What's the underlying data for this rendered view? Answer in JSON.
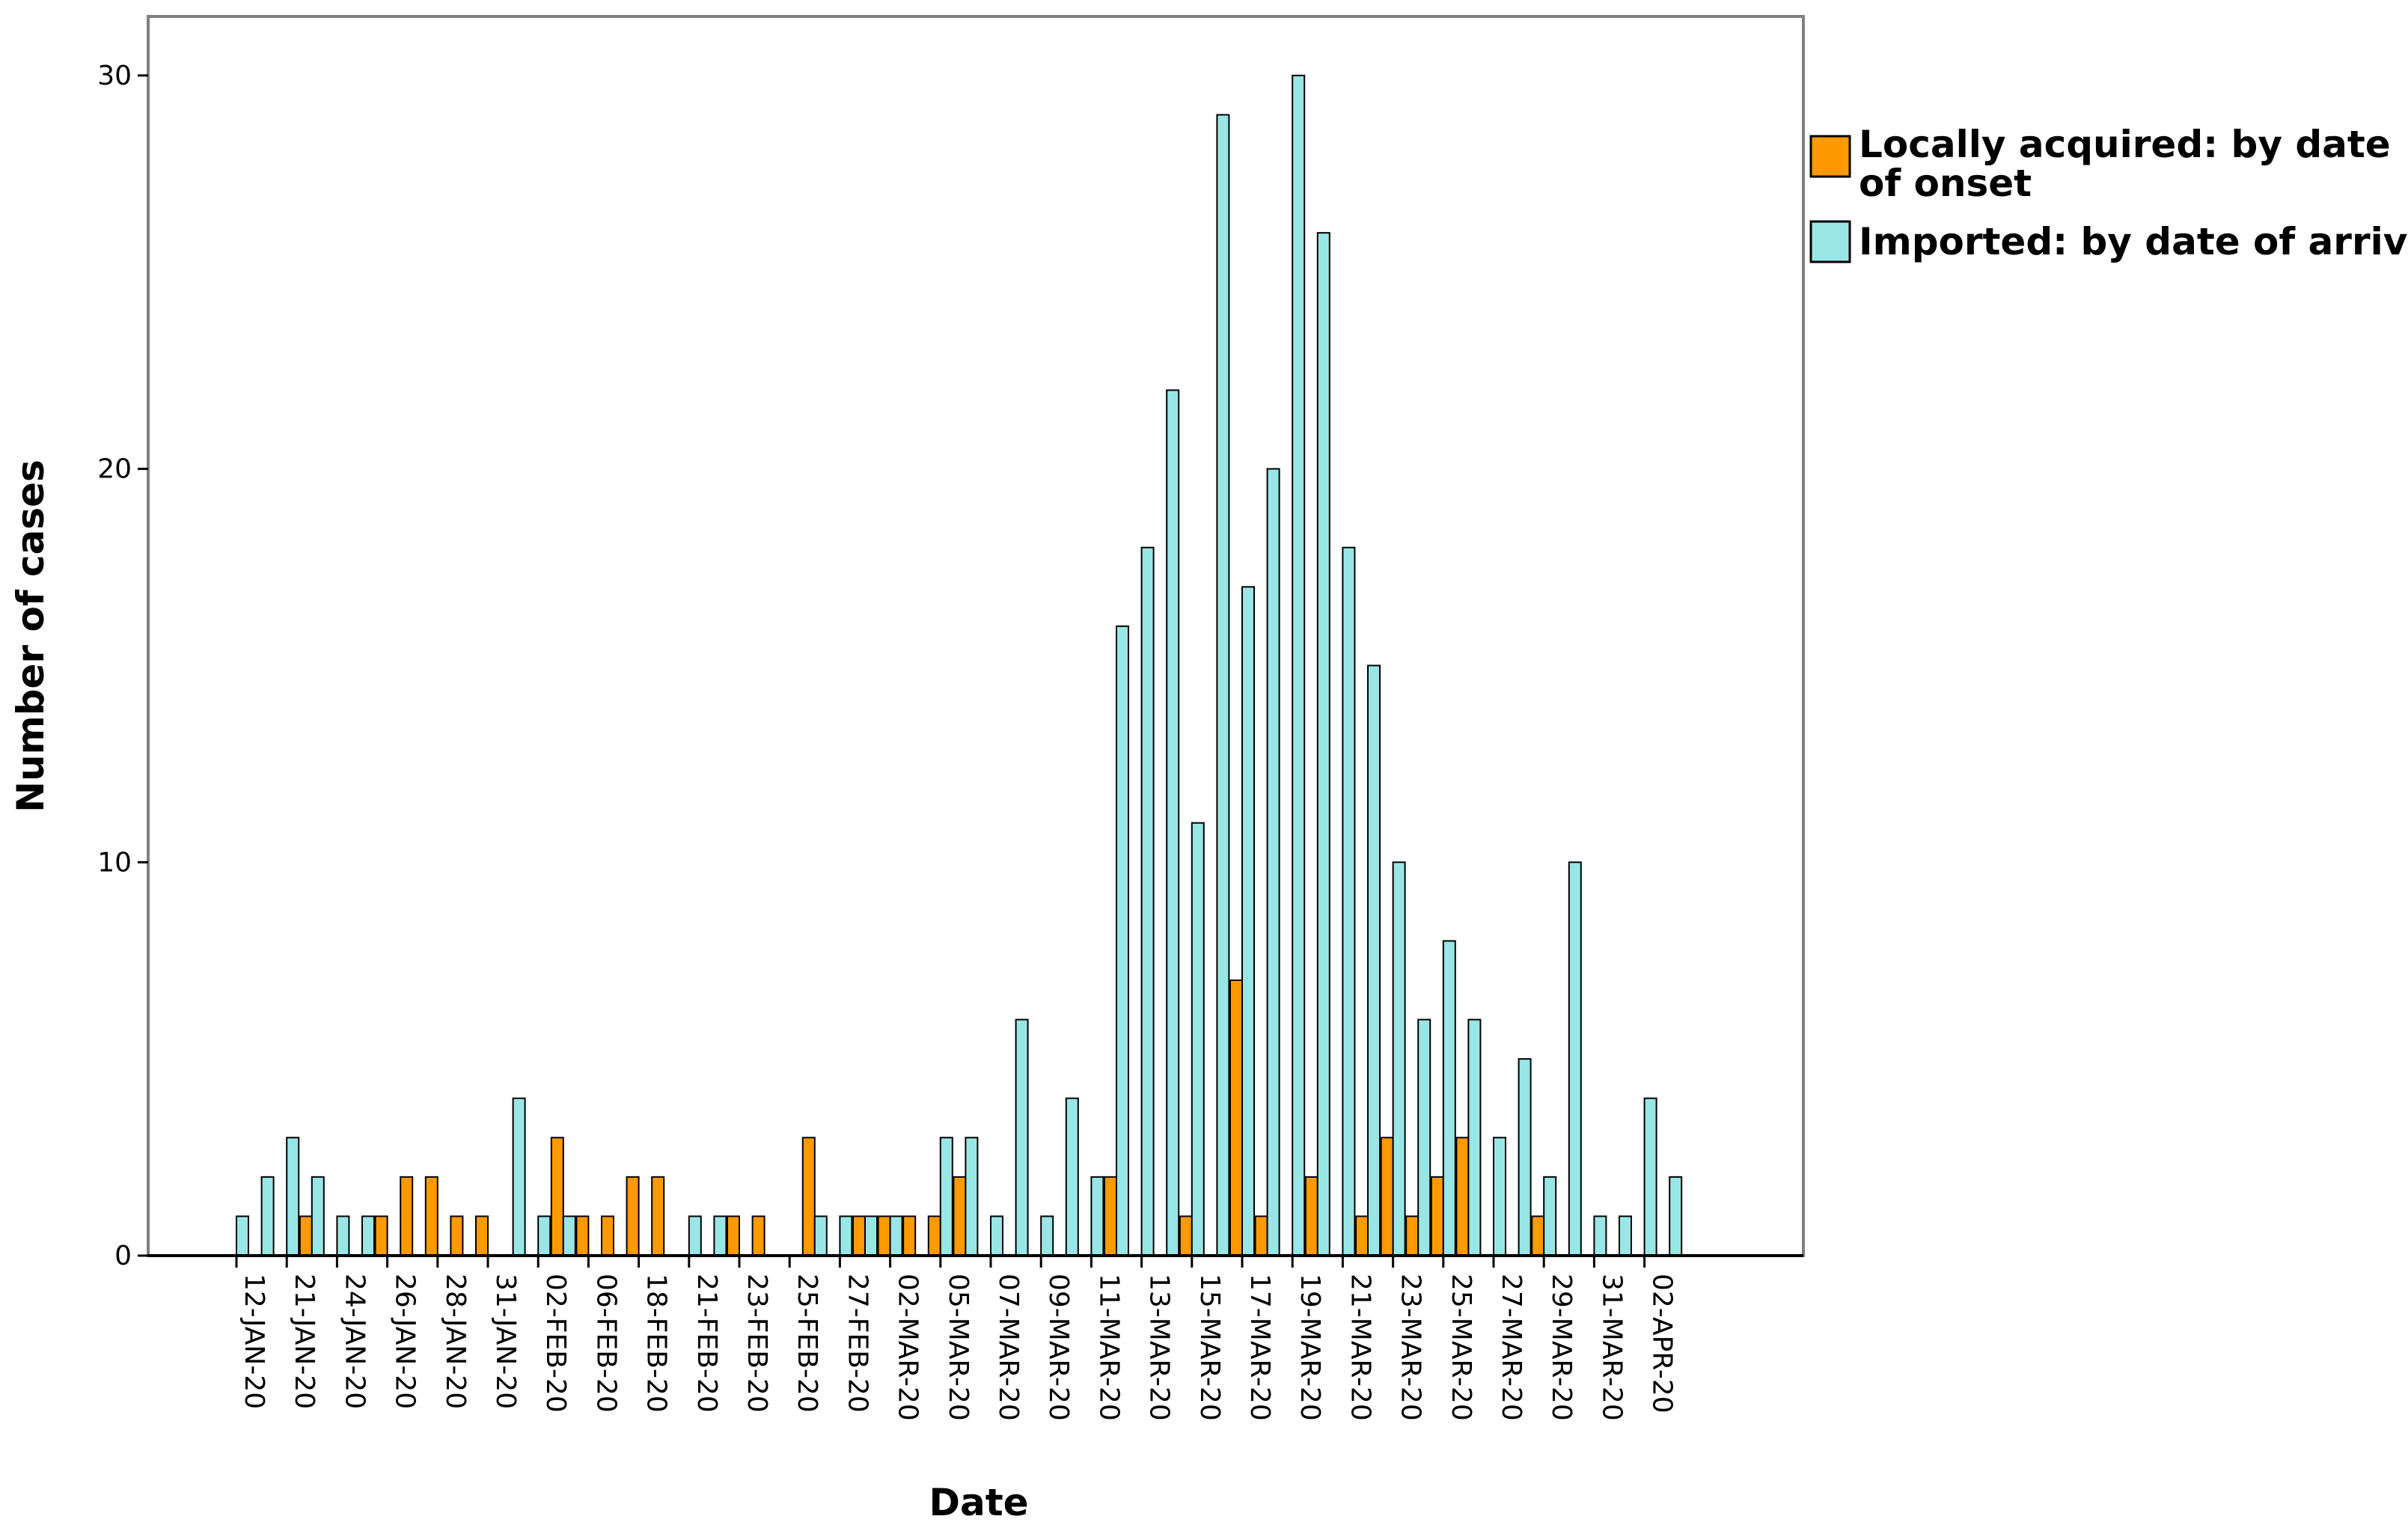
{
  "chart_data": {
    "type": "bar",
    "title": "",
    "xlabel": "Date",
    "ylabel": "Number of cases",
    "ylim": [
      0,
      31.5
    ],
    "yticks": [
      "0",
      "10",
      "20",
      "30"
    ],
    "grid": false,
    "legend_position": "top-right",
    "colors": {
      "local": "#ff9900",
      "imported": "#99e6e6",
      "stroke": "#000000"
    },
    "x_tick_labels": [
      "12-JAN-20",
      "21-JAN-20",
      "24-JAN-20",
      "26-JAN-20",
      "28-JAN-20",
      "31-JAN-20",
      "02-FEB-20",
      "06-FEB-20",
      "18-FEB-20",
      "21-FEB-20",
      "23-FEB-20",
      "25-FEB-20",
      "27-FEB-20",
      "02-MAR-20",
      "05-MAR-20",
      "07-MAR-20",
      "09-MAR-20",
      "11-MAR-20",
      "13-MAR-20",
      "15-MAR-20",
      "17-MAR-20",
      "19-MAR-20",
      "21-MAR-20",
      "23-MAR-20",
      "25-MAR-20",
      "27-MAR-20",
      "29-MAR-20",
      "31-MAR-20",
      "02-APR-20"
    ],
    "x_tick_index": [
      0,
      2,
      4,
      6,
      8,
      10,
      12,
      14,
      16,
      18,
      20,
      22,
      24,
      26,
      28,
      30,
      32,
      34,
      36,
      38,
      40,
      42,
      44,
      46,
      48,
      50,
      52,
      54,
      56
    ],
    "series": [
      {
        "name": "Locally acquired: by date of onset",
        "legend_lines": [
          "Locally acquired: by date",
          "of onset"
        ],
        "values": [
          0,
          0,
          0,
          1,
          0,
          0,
          1,
          2,
          2,
          1,
          1,
          0,
          0,
          3,
          1,
          1,
          2,
          2,
          0,
          0,
          1,
          1,
          0,
          3,
          0,
          1,
          1,
          1,
          1,
          2,
          0,
          0,
          0,
          0,
          0,
          2,
          0,
          0,
          1,
          0,
          7,
          1,
          0,
          2,
          0,
          1,
          3,
          1,
          2,
          3,
          0,
          0,
          1,
          0,
          0,
          0,
          0,
          0
        ]
      },
      {
        "name": "Imported: by date of arrival",
        "legend_lines": [
          "Imported: by date of arrival"
        ],
        "values": [
          1,
          2,
          3,
          2,
          1,
          1,
          0,
          0,
          0,
          0,
          0,
          4,
          1,
          1,
          0,
          0,
          0,
          0,
          1,
          1,
          0,
          0,
          0,
          1,
          1,
          1,
          1,
          0,
          3,
          3,
          1,
          6,
          1,
          4,
          2,
          16,
          18,
          22,
          11,
          29,
          17,
          20,
          30,
          26,
          18,
          15,
          10,
          6,
          8,
          6,
          3,
          5,
          2,
          10,
          1,
          1,
          4,
          2
        ]
      }
    ]
  }
}
